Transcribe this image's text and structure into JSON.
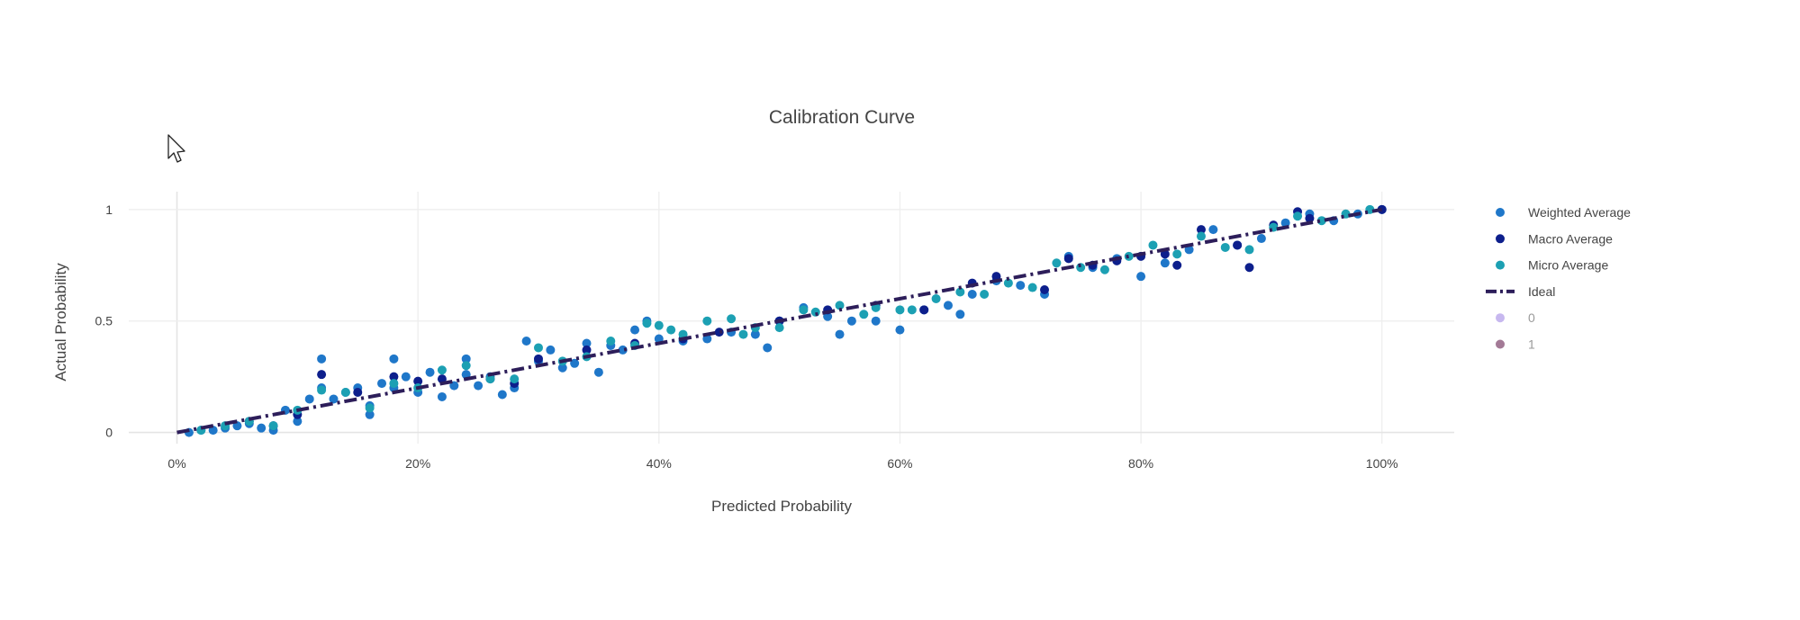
{
  "chart_data": {
    "type": "scatter",
    "title": "Calibration Curve",
    "xlabel": "Predicted Probability",
    "ylabel": "Actual Probability",
    "xlim": [
      -0.04,
      1.06
    ],
    "ylim": [
      -0.05,
      1.08
    ],
    "x_ticks": [
      {
        "value": 0.0,
        "label": "0%"
      },
      {
        "value": 0.2,
        "label": "20%"
      },
      {
        "value": 0.4,
        "label": "40%"
      },
      {
        "value": 0.6,
        "label": "60%"
      },
      {
        "value": 0.8,
        "label": "80%"
      },
      {
        "value": 1.0,
        "label": "100%"
      }
    ],
    "y_ticks": [
      {
        "value": 0,
        "label": "0"
      },
      {
        "value": 0.5,
        "label": "0.5"
      },
      {
        "value": 1,
        "label": "1"
      }
    ],
    "grid": true,
    "legend_position": "right",
    "series": [
      {
        "name": "Weighted Average",
        "kind": "markers",
        "color": "#1f77c9",
        "x": [
          0.01,
          0.02,
          0.03,
          0.04,
          0.05,
          0.06,
          0.07,
          0.08,
          0.09,
          0.1,
          0.11,
          0.12,
          0.12,
          0.13,
          0.14,
          0.15,
          0.16,
          0.16,
          0.17,
          0.18,
          0.18,
          0.19,
          0.2,
          0.21,
          0.22,
          0.23,
          0.24,
          0.24,
          0.25,
          0.26,
          0.27,
          0.28,
          0.29,
          0.3,
          0.31,
          0.32,
          0.33,
          0.34,
          0.35,
          0.36,
          0.37,
          0.38,
          0.39,
          0.4,
          0.42,
          0.44,
          0.46,
          0.48,
          0.49,
          0.5,
          0.52,
          0.54,
          0.55,
          0.56,
          0.58,
          0.6,
          0.62,
          0.64,
          0.65,
          0.66,
          0.68,
          0.7,
          0.72,
          0.74,
          0.76,
          0.78,
          0.8,
          0.82,
          0.84,
          0.86,
          0.88,
          0.9,
          0.92,
          0.94,
          0.96,
          0.98,
          1.0
        ],
        "y": [
          0.0,
          0.01,
          0.01,
          0.02,
          0.03,
          0.04,
          0.02,
          0.01,
          0.1,
          0.05,
          0.15,
          0.33,
          0.2,
          0.15,
          0.18,
          0.2,
          0.08,
          0.12,
          0.22,
          0.33,
          0.2,
          0.25,
          0.18,
          0.27,
          0.16,
          0.21,
          0.33,
          0.26,
          0.21,
          0.25,
          0.17,
          0.2,
          0.41,
          0.32,
          0.37,
          0.29,
          0.31,
          0.4,
          0.27,
          0.39,
          0.37,
          0.46,
          0.5,
          0.42,
          0.41,
          0.42,
          0.45,
          0.44,
          0.38,
          0.5,
          0.56,
          0.52,
          0.44,
          0.5,
          0.5,
          0.46,
          0.55,
          0.57,
          0.53,
          0.62,
          0.68,
          0.66,
          0.62,
          0.79,
          0.74,
          0.78,
          0.7,
          0.76,
          0.82,
          0.91,
          0.84,
          0.87,
          0.94,
          0.98,
          0.95,
          0.98,
          1.0
        ]
      },
      {
        "name": "Macro Average",
        "kind": "markers",
        "color": "#0d1f8c",
        "x": [
          0.06,
          0.08,
          0.1,
          0.12,
          0.15,
          0.18,
          0.2,
          0.22,
          0.26,
          0.28,
          0.3,
          0.34,
          0.38,
          0.42,
          0.45,
          0.5,
          0.54,
          0.58,
          0.62,
          0.66,
          0.68,
          0.72,
          0.74,
          0.76,
          0.78,
          0.8,
          0.82,
          0.83,
          0.85,
          0.88,
          0.89,
          0.91,
          0.93,
          0.94,
          1.0
        ],
        "y": [
          0.05,
          0.03,
          0.08,
          0.26,
          0.18,
          0.25,
          0.23,
          0.24,
          0.24,
          0.22,
          0.33,
          0.37,
          0.4,
          0.42,
          0.45,
          0.5,
          0.55,
          0.57,
          0.55,
          0.67,
          0.7,
          0.64,
          0.78,
          0.75,
          0.77,
          0.79,
          0.8,
          0.75,
          0.91,
          0.84,
          0.74,
          0.93,
          0.99,
          0.96,
          1.0
        ]
      },
      {
        "name": "Micro Average",
        "kind": "markers",
        "color": "#1ca0b3",
        "x": [
          0.02,
          0.04,
          0.06,
          0.08,
          0.1,
          0.12,
          0.14,
          0.16,
          0.18,
          0.2,
          0.22,
          0.24,
          0.26,
          0.28,
          0.3,
          0.32,
          0.34,
          0.36,
          0.38,
          0.39,
          0.4,
          0.41,
          0.42,
          0.44,
          0.46,
          0.47,
          0.48,
          0.5,
          0.52,
          0.53,
          0.55,
          0.57,
          0.58,
          0.6,
          0.61,
          0.63,
          0.65,
          0.67,
          0.69,
          0.71,
          0.73,
          0.75,
          0.77,
          0.79,
          0.81,
          0.83,
          0.85,
          0.87,
          0.89,
          0.91,
          0.93,
          0.95,
          0.97,
          0.99
        ],
        "y": [
          0.01,
          0.03,
          0.05,
          0.03,
          0.1,
          0.19,
          0.18,
          0.11,
          0.22,
          0.2,
          0.28,
          0.3,
          0.24,
          0.24,
          0.38,
          0.32,
          0.34,
          0.41,
          0.39,
          0.49,
          0.48,
          0.46,
          0.44,
          0.5,
          0.51,
          0.44,
          0.47,
          0.47,
          0.55,
          0.54,
          0.57,
          0.53,
          0.56,
          0.55,
          0.55,
          0.6,
          0.63,
          0.62,
          0.67,
          0.65,
          0.76,
          0.74,
          0.73,
          0.79,
          0.84,
          0.8,
          0.88,
          0.83,
          0.82,
          0.92,
          0.97,
          0.95,
          0.98,
          1.0
        ]
      },
      {
        "name": "Ideal",
        "kind": "line",
        "dash": "dashdot",
        "color": "#2d1e5a",
        "x": [
          0,
          1
        ],
        "y": [
          0,
          1
        ]
      },
      {
        "name": "0",
        "kind": "markers",
        "color": "#c7b8ef",
        "legend_only": true,
        "x": [],
        "y": []
      },
      {
        "name": "1",
        "kind": "markers",
        "color": "#a37a96",
        "legend_only": true,
        "x": [],
        "y": []
      }
    ]
  }
}
